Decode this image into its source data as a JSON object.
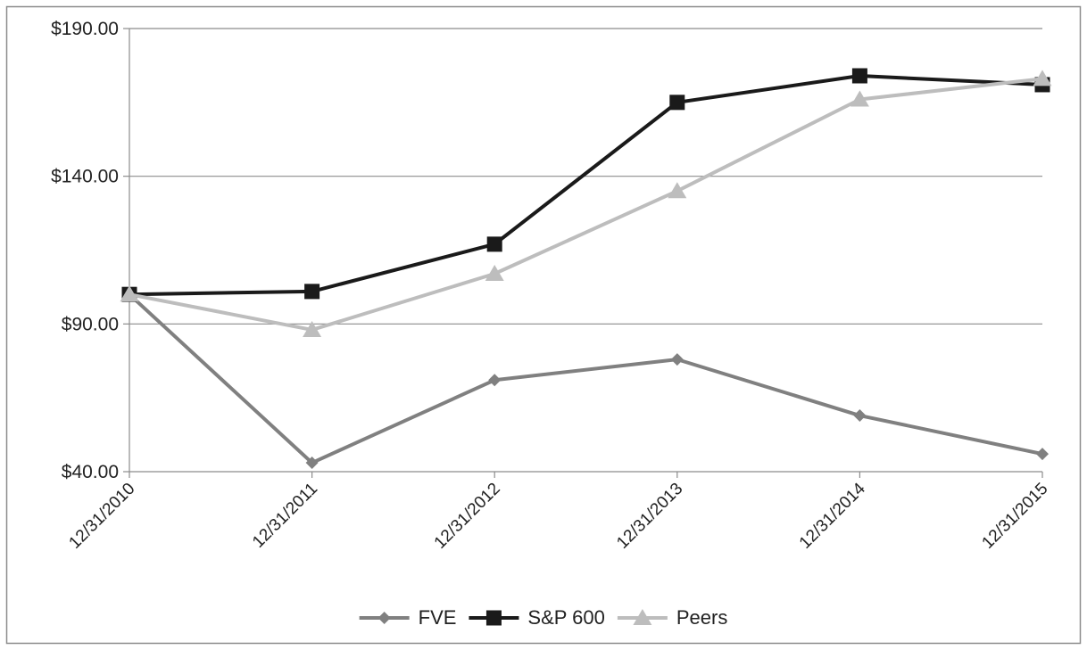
{
  "chart_data": {
    "type": "line",
    "title": "",
    "xlabel": "",
    "ylabel": "",
    "categories": [
      "12/31/2010",
      "12/31/2011",
      "12/31/2012",
      "12/31/2013",
      "12/31/2014",
      "12/31/2015"
    ],
    "ylim": [
      40,
      190
    ],
    "yticks": [
      40,
      90,
      140,
      190
    ],
    "ytick_labels": [
      "$40.00",
      "$90.00",
      "$140.00",
      "$190.00"
    ],
    "grid": true,
    "legend_position": "bottom",
    "series": [
      {
        "name": "FVE",
        "values": [
          100,
          43,
          71,
          78,
          59,
          46
        ],
        "color": "#808080",
        "marker": "diamond"
      },
      {
        "name": "S&P 600",
        "values": [
          100,
          101,
          117,
          165,
          174,
          171
        ],
        "color": "#1a1a1a",
        "marker": "square"
      },
      {
        "name": "Peers",
        "values": [
          100,
          88,
          107,
          135,
          166,
          173
        ],
        "color": "#bdbdbd",
        "marker": "triangle"
      }
    ]
  }
}
